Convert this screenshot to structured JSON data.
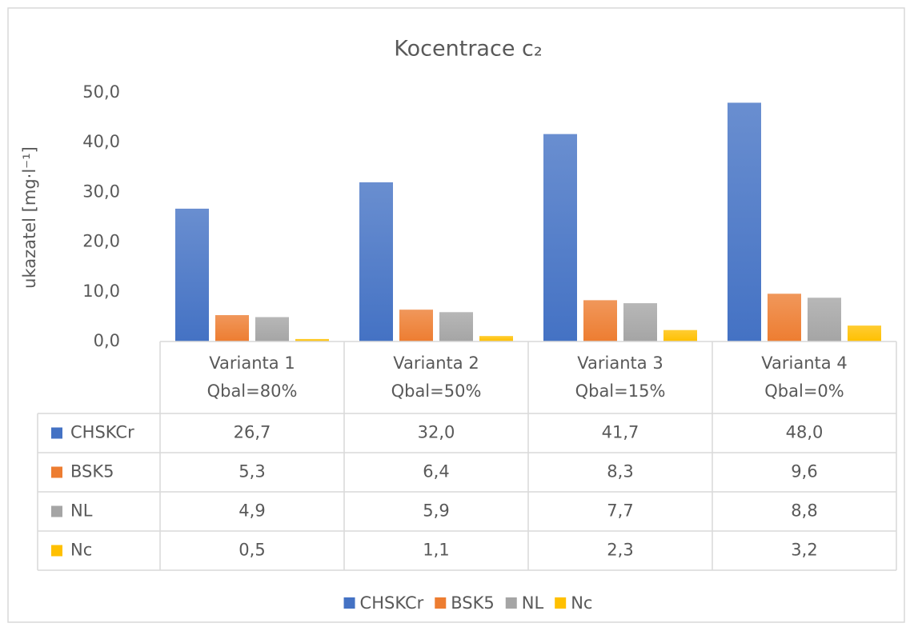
{
  "chart_data": {
    "type": "bar",
    "title": "Kocentrace c₂",
    "y_label": "ukazatel [mg·l⁻¹]",
    "categories": [
      [
        "Varianta 1",
        "Qbal=80%"
      ],
      [
        "Varianta 2",
        "Qbal=50%"
      ],
      [
        "Varianta 3",
        "Qbal=15%"
      ],
      [
        "Varianta 4",
        "Qbal=0%"
      ]
    ],
    "series": [
      {
        "name": "CHSKCr",
        "color": "#4472c4",
        "values": [
          26.7,
          32.0,
          41.7,
          48.0
        ],
        "value_labels": [
          "26,7",
          "32,0",
          "41,7",
          "48,0"
        ]
      },
      {
        "name": "BSK5",
        "color": "#ed7d31",
        "values": [
          5.3,
          6.4,
          8.3,
          9.6
        ],
        "value_labels": [
          "5,3",
          "6,4",
          "8,3",
          "9,6"
        ]
      },
      {
        "name": "NL",
        "color": "#a5a5a5",
        "values": [
          4.9,
          5.9,
          7.7,
          8.8
        ],
        "value_labels": [
          "4,9",
          "5,9",
          "7,7",
          "8,8"
        ]
      },
      {
        "name": "Nc",
        "color": "#ffc000",
        "values": [
          0.5,
          1.1,
          2.3,
          3.2
        ],
        "value_labels": [
          "0,5",
          "1,1",
          "2,3",
          "3,2"
        ]
      }
    ],
    "ylim": [
      0,
      50
    ],
    "yticks": [
      {
        "value": 0,
        "label": "0,0"
      },
      {
        "value": 10,
        "label": "10,0"
      },
      {
        "value": 20,
        "label": "20,0"
      },
      {
        "value": 30,
        "label": "30,0"
      },
      {
        "value": 40,
        "label": "40,0"
      },
      {
        "value": 50,
        "label": "50,0"
      }
    ],
    "grid": false,
    "data_table": true,
    "legend": "bottom"
  }
}
